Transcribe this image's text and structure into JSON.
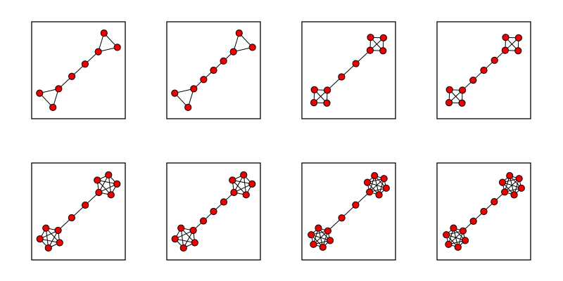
{
  "figure": {
    "rows": 2,
    "cols": 4,
    "node_color": "#ee0000",
    "edge_color": "#000000",
    "frame_color": "#000000",
    "background": "#ffffff",
    "graph_family": "barbell",
    "panels": [
      {
        "clique_size": 3,
        "path_length": 2
      },
      {
        "clique_size": 3,
        "path_length": 3
      },
      {
        "clique_size": 4,
        "path_length": 2
      },
      {
        "clique_size": 4,
        "path_length": 3
      },
      {
        "clique_size": 5,
        "path_length": 2
      },
      {
        "clique_size": 5,
        "path_length": 3
      },
      {
        "clique_size": 6,
        "path_length": 2
      },
      {
        "clique_size": 6,
        "path_length": 3
      }
    ]
  }
}
